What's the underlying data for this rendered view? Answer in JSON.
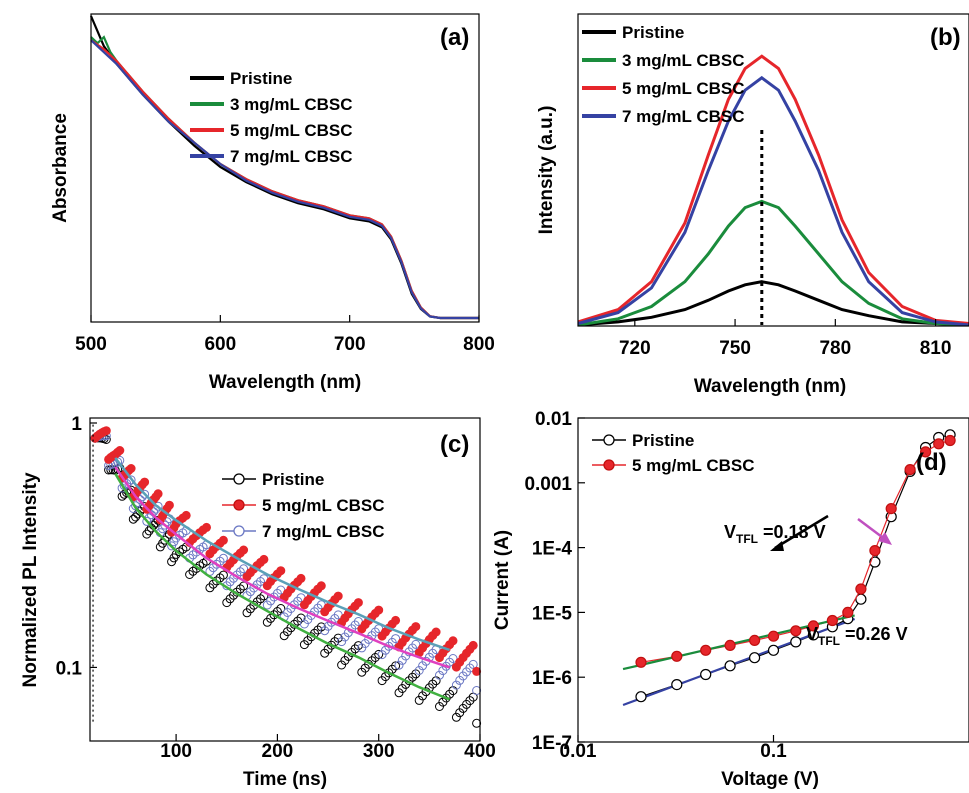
{
  "chart_data": [
    {
      "panel": "(a)",
      "type": "line",
      "xlabel": "Wavelength (nm)",
      "ylabel": "Absorbance",
      "xlim": [
        500,
        800
      ],
      "ylim": [
        0,
        1
      ],
      "x_ticks": [
        "500",
        "600",
        "700",
        "800"
      ],
      "legend": "top-right",
      "series": [
        {
          "name": "Pristine",
          "color": "#000000",
          "x": [
            500,
            510,
            520,
            540,
            560,
            580,
            600,
            620,
            640,
            660,
            680,
            700,
            715,
            725,
            732,
            740,
            748,
            755,
            762,
            770,
            800
          ],
          "y": [
            1.0,
            0.9,
            0.84,
            0.74,
            0.65,
            0.57,
            0.5,
            0.45,
            0.41,
            0.38,
            0.36,
            0.33,
            0.32,
            0.3,
            0.26,
            0.18,
            0.08,
            0.03,
            0.005,
            0.0,
            0.0
          ]
        },
        {
          "name": "3 mg/mL CBSC",
          "color": "#1a8c3c",
          "x": [
            500,
            505,
            510,
            515,
            520,
            540,
            560,
            580,
            600,
            620,
            640,
            660,
            680,
            700,
            715,
            725,
            732,
            740,
            748,
            755,
            762,
            770,
            800
          ],
          "y": [
            0.93,
            0.91,
            0.93,
            0.88,
            0.85,
            0.75,
            0.66,
            0.58,
            0.51,
            0.46,
            0.42,
            0.39,
            0.37,
            0.34,
            0.33,
            0.31,
            0.27,
            0.19,
            0.09,
            0.035,
            0.006,
            0.0,
            0.0
          ]
        },
        {
          "name": "5 mg/mL CBSC",
          "color": "#e6262b",
          "x": [
            500,
            510,
            520,
            540,
            560,
            580,
            600,
            620,
            640,
            660,
            680,
            700,
            715,
            725,
            732,
            740,
            748,
            755,
            762,
            770,
            800
          ],
          "y": [
            0.92,
            0.89,
            0.85,
            0.75,
            0.66,
            0.58,
            0.51,
            0.46,
            0.42,
            0.39,
            0.37,
            0.34,
            0.33,
            0.31,
            0.27,
            0.19,
            0.09,
            0.035,
            0.006,
            0.0,
            0.0
          ]
        },
        {
          "name": "7 mg/mL CBSC",
          "color": "#3542a3",
          "x": [
            500,
            510,
            520,
            540,
            560,
            580,
            600,
            620,
            640,
            660,
            680,
            700,
            715,
            725,
            732,
            740,
            748,
            755,
            762,
            770,
            800
          ],
          "y": [
            0.92,
            0.88,
            0.84,
            0.74,
            0.65,
            0.58,
            0.51,
            0.455,
            0.415,
            0.385,
            0.365,
            0.335,
            0.325,
            0.305,
            0.265,
            0.185,
            0.085,
            0.032,
            0.005,
            0.0,
            0.0
          ]
        }
      ]
    },
    {
      "panel": "(b)",
      "type": "line",
      "xlabel": "Wavelength (nm)",
      "ylabel": "Intensity (a.u.)",
      "xlim": [
        703,
        820
      ],
      "ylim": [
        0,
        1
      ],
      "x_ticks": [
        "720",
        "750",
        "780",
        "810"
      ],
      "legend": "top-left",
      "peak_marker": 758,
      "series": [
        {
          "name": "Pristine",
          "color": "#000000",
          "x": [
            703,
            715,
            725,
            735,
            742,
            748,
            753,
            758,
            763,
            768,
            775,
            782,
            790,
            800,
            810,
            820
          ],
          "y": [
            0.0,
            0.01,
            0.025,
            0.05,
            0.08,
            0.11,
            0.13,
            0.14,
            0.13,
            0.11,
            0.08,
            0.05,
            0.03,
            0.01,
            0.005,
            0.0
          ]
        },
        {
          "name": "3 mg/mL CBSC",
          "color": "#1a8c3c",
          "x": [
            703,
            715,
            725,
            735,
            742,
            748,
            753,
            758,
            763,
            768,
            775,
            782,
            790,
            800,
            810,
            820
          ],
          "y": [
            0.0,
            0.02,
            0.06,
            0.14,
            0.23,
            0.32,
            0.38,
            0.4,
            0.38,
            0.32,
            0.23,
            0.14,
            0.07,
            0.02,
            0.005,
            0.0
          ]
        },
        {
          "name": "5 mg/mL CBSC",
          "color": "#e6262b",
          "x": [
            703,
            715,
            725,
            735,
            742,
            748,
            753,
            758,
            763,
            768,
            775,
            782,
            790,
            800,
            810,
            820
          ],
          "y": [
            0.01,
            0.05,
            0.14,
            0.33,
            0.55,
            0.73,
            0.83,
            0.87,
            0.83,
            0.73,
            0.55,
            0.34,
            0.17,
            0.06,
            0.015,
            0.005
          ]
        },
        {
          "name": "7 mg/mL CBSC",
          "color": "#3542a3",
          "x": [
            703,
            715,
            725,
            735,
            742,
            748,
            753,
            758,
            763,
            768,
            775,
            782,
            790,
            800,
            810,
            820
          ],
          "y": [
            0.005,
            0.04,
            0.12,
            0.3,
            0.5,
            0.66,
            0.76,
            0.8,
            0.76,
            0.66,
            0.5,
            0.3,
            0.14,
            0.04,
            0.01,
            0.0
          ]
        }
      ]
    },
    {
      "panel": "(c)",
      "type": "scatter",
      "xlabel": "Time (ns)",
      "ylabel": "Normalized PL Intensity",
      "xlim": [
        15,
        400
      ],
      "ylim": [
        0.05,
        1
      ],
      "y_scale": "log",
      "x_ticks": [
        "100",
        "200",
        "300",
        "400"
      ],
      "y_ticks": [
        "1",
        "0.1"
      ],
      "legend": "top-right",
      "series": [
        {
          "name": "Pristine",
          "color": "#000000",
          "marker": "open-circle",
          "fit_color": "#40b040",
          "x": [
            20,
            40,
            60,
            80,
            100,
            130,
            160,
            190,
            220,
            250,
            280,
            310,
            340,
            370,
            400
          ],
          "y": [
            1.0,
            0.62,
            0.45,
            0.36,
            0.3,
            0.24,
            0.2,
            0.17,
            0.145,
            0.125,
            0.11,
            0.095,
            0.083,
            0.074,
            0.066
          ]
        },
        {
          "name": "5 mg/mL CBSC",
          "color": "#e6262b",
          "marker": "filled-circle",
          "fit_color": "#5aa0b8",
          "x": [
            20,
            40,
            60,
            80,
            100,
            130,
            160,
            190,
            220,
            250,
            280,
            310,
            340,
            370,
            400
          ],
          "y": [
            1.0,
            0.72,
            0.56,
            0.46,
            0.4,
            0.33,
            0.28,
            0.24,
            0.21,
            0.185,
            0.165,
            0.145,
            0.13,
            0.118,
            0.108
          ]
        },
        {
          "name": "7 mg/mL CBSC",
          "color": "#6b78c4",
          "marker": "open-circle",
          "fit_color": "#e040c0",
          "x": [
            20,
            40,
            60,
            80,
            100,
            130,
            160,
            190,
            220,
            250,
            280,
            310,
            340,
            370,
            400
          ],
          "y": [
            1.0,
            0.66,
            0.5,
            0.41,
            0.35,
            0.28,
            0.235,
            0.2,
            0.175,
            0.155,
            0.138,
            0.122,
            0.11,
            0.1,
            0.09
          ]
        }
      ]
    },
    {
      "panel": "(d)",
      "type": "scatter",
      "xlabel": "Voltage (V)",
      "ylabel": "Current (A)",
      "xlim": [
        0.01,
        1
      ],
      "ylim": [
        1e-07,
        0.01
      ],
      "x_scale": "log",
      "y_scale": "log",
      "x_ticks": [
        "0.01",
        "0.1"
      ],
      "y_ticks": [
        "0.01",
        "0.001",
        "1E-4",
        "1E-5",
        "1E-6",
        "1E-7"
      ],
      "legend": "top-left",
      "annotations": {
        "vtfl_1": {
          "text": "=0.18 V",
          "label_main": "V",
          "label_sub": "TFL",
          "x": 0.18
        },
        "vtfl_2": {
          "text": "=0.26 V",
          "label_main": "V",
          "label_sub": "TFL",
          "x": 0.26
        }
      },
      "series": [
        {
          "name": "Pristine",
          "color": "#000000",
          "marker": "open-circle",
          "fit_color": "#3542a3",
          "x": [
            0.021,
            0.032,
            0.045,
            0.06,
            0.08,
            0.1,
            0.13,
            0.16,
            0.2,
            0.24,
            0.28,
            0.33,
            0.4,
            0.5,
            0.6,
            0.7,
            0.8
          ],
          "y": [
            5e-07,
            7.7e-07,
            1.1e-06,
            1.5e-06,
            2e-06,
            2.6e-06,
            3.5e-06,
            4.5e-06,
            6e-06,
            8e-06,
            1.6e-05,
            6e-05,
            0.0003,
            0.0015,
            0.0035,
            0.005,
            0.0055
          ]
        },
        {
          "name": "5 mg/mL CBSC",
          "color": "#e6262b",
          "marker": "filled-circle",
          "fit_color": "#1a8c3c",
          "x": [
            0.021,
            0.032,
            0.045,
            0.06,
            0.08,
            0.1,
            0.13,
            0.16,
            0.2,
            0.24,
            0.28,
            0.33,
            0.4,
            0.5,
            0.6,
            0.7,
            0.8
          ],
          "y": [
            1.7e-06,
            2.1e-06,
            2.6e-06,
            3.1e-06,
            3.7e-06,
            4.3e-06,
            5.2e-06,
            6.2e-06,
            7.5e-06,
            1e-05,
            2.3e-05,
            9e-05,
            0.0004,
            0.0016,
            0.003,
            0.004,
            0.0045
          ]
        }
      ]
    }
  ]
}
